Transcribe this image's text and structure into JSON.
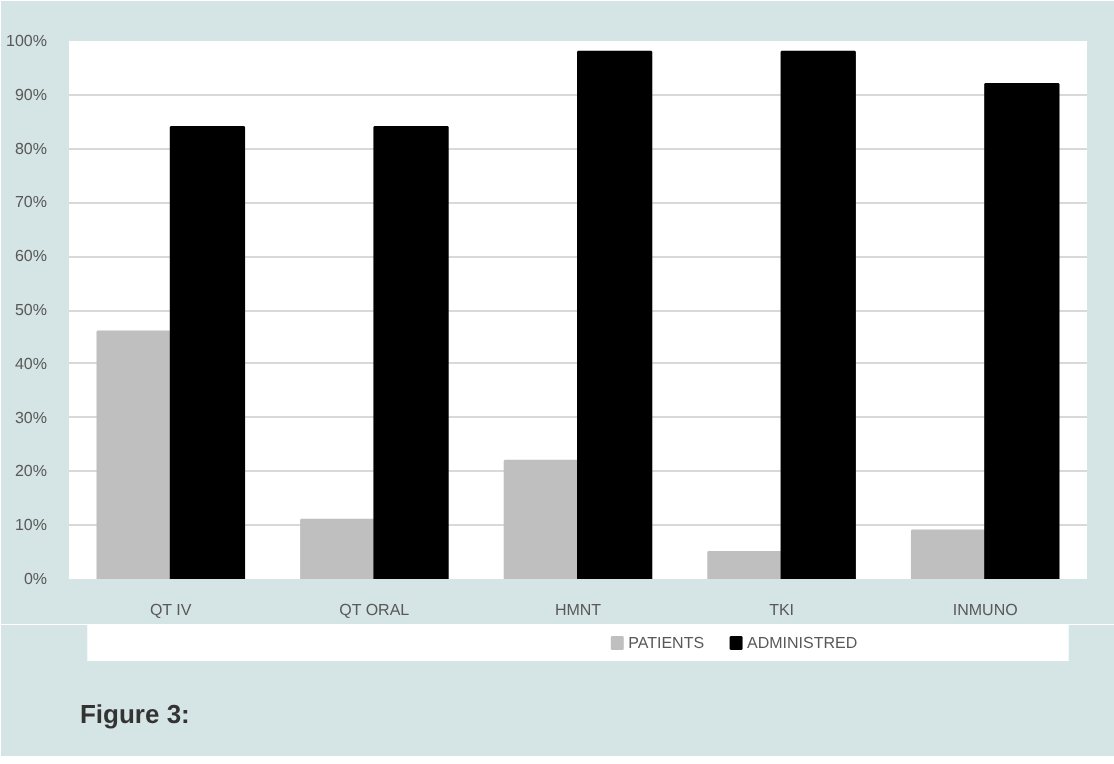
{
  "chart_data": {
    "type": "bar",
    "categories": [
      "QT IV",
      "QT ORAL",
      "HMNT",
      "TKI",
      "INMUNO"
    ],
    "series": [
      {
        "name": "PATIENTS",
        "color": "#bfbfbf",
        "values": [
          46,
          11,
          22,
          5,
          9
        ]
      },
      {
        "name": "ADMINISTRED",
        "color": "#000000",
        "values": [
          84,
          84,
          98,
          98,
          92
        ]
      }
    ],
    "ylim": [
      0,
      100
    ],
    "yticks": [
      {
        "value": 0,
        "label": "0%"
      },
      {
        "value": 10,
        "label": "10%"
      },
      {
        "value": 20,
        "label": "20%"
      },
      {
        "value": 30,
        "label": "30%"
      },
      {
        "value": 40,
        "label": "40%"
      },
      {
        "value": 50,
        "label": "50%"
      },
      {
        "value": 60,
        "label": "60%"
      },
      {
        "value": 70,
        "label": "70%"
      },
      {
        "value": 80,
        "label": "80%"
      },
      {
        "value": 90,
        "label": "90%"
      },
      {
        "value": 100,
        "label": "100%"
      }
    ],
    "grid": "y",
    "legend": "bottom",
    "annotations": [
      "Figure 3:"
    ]
  }
}
